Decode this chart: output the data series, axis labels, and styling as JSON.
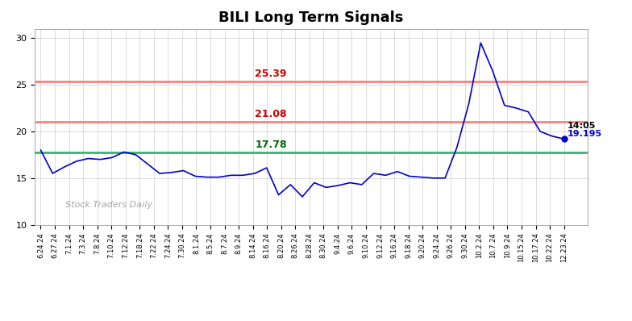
{
  "title": "BILI Long Term Signals",
  "hline_green": 17.78,
  "hline_red1": 21.08,
  "hline_red2": 25.39,
  "hline_green_label": "17.78",
  "hline_red1_label": "21.08",
  "hline_red2_label": "25.39",
  "ylim": [
    10,
    31
  ],
  "yticks": [
    10,
    15,
    20,
    25,
    30
  ],
  "last_price": "19.195",
  "last_time": "14:05",
  "watermark": "Stock Traders Daily",
  "line_color": "#0000cc",
  "green_line_color": "#3cb371",
  "red_line_color": "#ff8080",
  "red_label_color": "#cc0000",
  "green_label_color": "#006600",
  "x_dates": [
    "6.24.24",
    "6.27.24",
    "7.1.24",
    "7.3.24",
    "7.5.24",
    "7.8.24",
    "7.10.24",
    "7.12.24",
    "7.15.24",
    "7.17.24",
    "7.18.24",
    "7.22.24",
    "7.24.24",
    "7.26.24",
    "7.29.24",
    "7.30.24",
    "8.1.24",
    "8.5.24",
    "8.7.24",
    "8.9.24",
    "8.14.24",
    "8.16.24",
    "8.20.24",
    "8.26.24",
    "8.28.24",
    "8.30.24",
    "9.4.24",
    "9.6.24",
    "9.10.24",
    "9.12.24",
    "9.16.24",
    "9.18.24",
    "9.20.24",
    "9.24.24",
    "9.26.24",
    "9.30.24",
    "10.2.24",
    "10.7.24",
    "10.9.24",
    "10.11.24",
    "10.15.24",
    "10.17.24",
    "10.22.24",
    "10.23.24",
    "12.23.24"
  ],
  "y_values": [
    18.0,
    15.5,
    16.2,
    16.8,
    17.1,
    17.0,
    17.2,
    17.8,
    17.5,
    16.5,
    15.5,
    15.6,
    15.8,
    15.2,
    15.1,
    15.1,
    15.3,
    15.3,
    15.5,
    16.1,
    13.2,
    14.3,
    13.0,
    14.5,
    14.0,
    14.2,
    14.5,
    14.3,
    15.5,
    15.3,
    15.7,
    15.2,
    15.1,
    15.0,
    15.0,
    18.3,
    23.0,
    29.5,
    26.5,
    22.8,
    22.5,
    22.1,
    20.0,
    19.5,
    19.195
  ],
  "tick_labels": [
    "6.24.24",
    "6.27.24",
    "7.1.24",
    "7.3.24",
    "7.8.24",
    "7.10.24",
    "7.12.24",
    "7.18.24",
    "7.22.24",
    "7.24.24",
    "7.30.24",
    "8.1.24",
    "8.5.24",
    "8.7.24",
    "8.9.24",
    "8.14.24",
    "8.16.24",
    "8.20.24",
    "8.26.24",
    "8.28.24",
    "8.30.24",
    "9.4.24",
    "9.6.24",
    "9.10.24",
    "9.12.24",
    "9.16.24",
    "9.18.24",
    "9.20.24",
    "9.24.24",
    "9.26.24",
    "9.30.24",
    "10.2.24",
    "10.7.24",
    "10.9.24",
    "10.15.24",
    "10.17.24",
    "10.22.24",
    "12.23.24"
  ],
  "fig_width": 7.84,
  "fig_height": 3.98,
  "dpi": 100
}
